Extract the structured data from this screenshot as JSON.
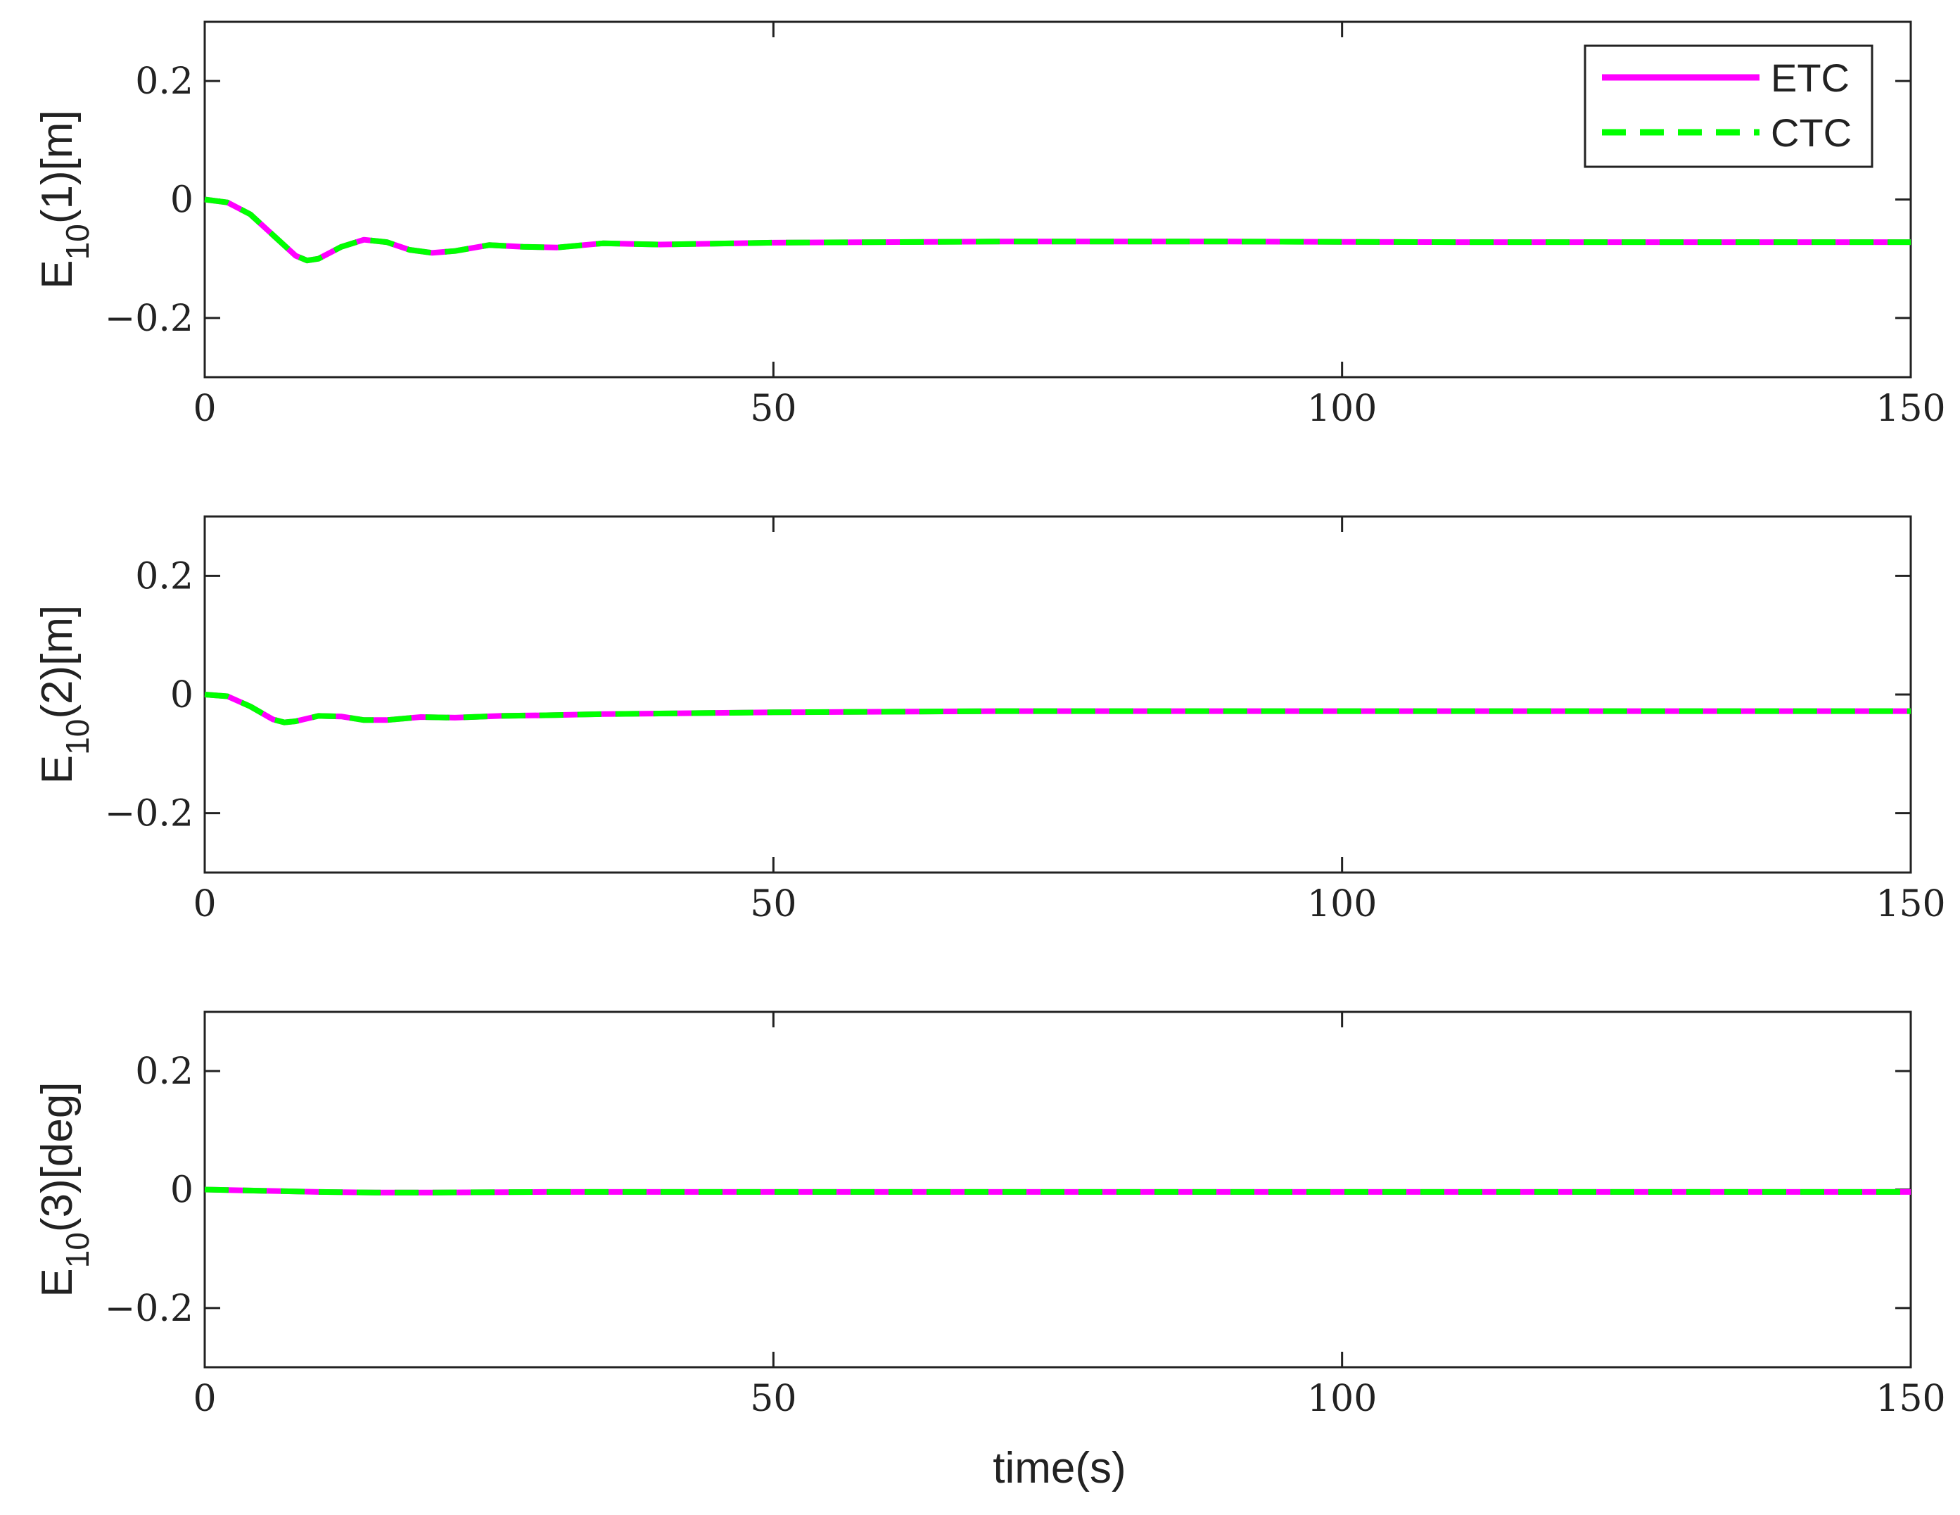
{
  "figure": {
    "xlabel": "time(s)"
  },
  "legend": {
    "placement": "top-right",
    "entries": [
      {
        "label": "ETC",
        "color": "#ff00ff",
        "style": "solid"
      },
      {
        "label": "CTC",
        "color": "#00ff00",
        "style": "dashed"
      }
    ]
  },
  "chart_data": [
    {
      "type": "line",
      "ylabel": {
        "base": "E",
        "sub": "10",
        "rest": "(1)[m]"
      },
      "xlim": [
        0,
        150
      ],
      "ylim": [
        -0.3,
        0.3
      ],
      "xticks": [
        0,
        50,
        100,
        150
      ],
      "yticks": [
        -0.2,
        0,
        0.2
      ],
      "ytick_labels": [
        "−0.2",
        "0",
        "0.2"
      ],
      "xtick_labels": [
        "0",
        "50",
        "100",
        "150"
      ],
      "grid": false,
      "series": [
        {
          "name": "ETC",
          "color": "#ff00ff",
          "style": "solid",
          "x": [
            0,
            2,
            4,
            6,
            8,
            9,
            10,
            12,
            14,
            16,
            18,
            20,
            22,
            25,
            28,
            31,
            35,
            40,
            50,
            70,
            90,
            110,
            130,
            150
          ],
          "y": [
            0,
            -0.005,
            -0.025,
            -0.06,
            -0.095,
            -0.103,
            -0.1,
            -0.08,
            -0.068,
            -0.072,
            -0.085,
            -0.09,
            -0.087,
            -0.077,
            -0.08,
            -0.081,
            -0.074,
            -0.076,
            -0.073,
            -0.071,
            -0.071,
            -0.072,
            -0.072,
            -0.072
          ]
        },
        {
          "name": "CTC",
          "color": "#00ff00",
          "style": "dashed",
          "x": [
            0,
            2,
            4,
            6,
            8,
            9,
            10,
            12,
            14,
            16,
            18,
            20,
            22,
            25,
            28,
            31,
            35,
            40,
            50,
            70,
            90,
            110,
            130,
            150
          ],
          "y": [
            0,
            -0.005,
            -0.025,
            -0.06,
            -0.095,
            -0.103,
            -0.1,
            -0.08,
            -0.068,
            -0.072,
            -0.085,
            -0.09,
            -0.087,
            -0.077,
            -0.08,
            -0.081,
            -0.074,
            -0.076,
            -0.073,
            -0.071,
            -0.071,
            -0.072,
            -0.072,
            -0.072
          ]
        }
      ]
    },
    {
      "type": "line",
      "ylabel": {
        "base": "E",
        "sub": "10",
        "rest": "(2)[m]"
      },
      "xlim": [
        0,
        150
      ],
      "ylim": [
        -0.3,
        0.3
      ],
      "xticks": [
        0,
        50,
        100,
        150
      ],
      "yticks": [
        -0.2,
        0,
        0.2
      ],
      "ytick_labels": [
        "−0.2",
        "0",
        "0.2"
      ],
      "xtick_labels": [
        "0",
        "50",
        "100",
        "150"
      ],
      "grid": false,
      "series": [
        {
          "name": "ETC",
          "color": "#ff00ff",
          "style": "solid",
          "x": [
            0,
            2,
            4,
            6,
            7,
            8,
            10,
            12,
            14,
            16,
            19,
            22,
            26,
            30,
            35,
            40,
            50,
            70,
            90,
            110,
            130,
            150
          ],
          "y": [
            0,
            -0.003,
            -0.02,
            -0.042,
            -0.047,
            -0.045,
            -0.036,
            -0.037,
            -0.043,
            -0.043,
            -0.038,
            -0.039,
            -0.036,
            -0.035,
            -0.033,
            -0.032,
            -0.03,
            -0.028,
            -0.028,
            -0.028,
            -0.028,
            -0.028
          ]
        },
        {
          "name": "CTC",
          "color": "#00ff00",
          "style": "dashed",
          "x": [
            0,
            2,
            4,
            6,
            7,
            8,
            10,
            12,
            14,
            16,
            19,
            22,
            26,
            30,
            35,
            40,
            50,
            70,
            90,
            110,
            130,
            150
          ],
          "y": [
            0,
            -0.003,
            -0.02,
            -0.042,
            -0.047,
            -0.045,
            -0.036,
            -0.037,
            -0.043,
            -0.043,
            -0.038,
            -0.039,
            -0.036,
            -0.035,
            -0.033,
            -0.032,
            -0.03,
            -0.028,
            -0.028,
            -0.028,
            -0.028,
            -0.028
          ]
        }
      ]
    },
    {
      "type": "line",
      "ylabel": {
        "base": "E",
        "sub": "10",
        "rest": "(3)[deg]"
      },
      "xlim": [
        0,
        150
      ],
      "ylim": [
        -0.3,
        0.3
      ],
      "xticks": [
        0,
        50,
        100,
        150
      ],
      "yticks": [
        -0.2,
        0,
        0.2
      ],
      "ytick_labels": [
        "−0.2",
        "0",
        "0.2"
      ],
      "xtick_labels": [
        "0",
        "50",
        "100",
        "150"
      ],
      "grid": false,
      "series": [
        {
          "name": "ETC",
          "color": "#ff00ff",
          "style": "solid",
          "x": [
            0,
            5,
            10,
            15,
            20,
            30,
            50,
            100,
            150
          ],
          "y": [
            0,
            -0.002,
            -0.004,
            -0.005,
            -0.005,
            -0.004,
            -0.004,
            -0.004,
            -0.004
          ]
        },
        {
          "name": "CTC",
          "color": "#00ff00",
          "style": "dashed",
          "x": [
            0,
            5,
            10,
            15,
            20,
            30,
            50,
            100,
            150
          ],
          "y": [
            0,
            -0.002,
            -0.004,
            -0.005,
            -0.005,
            -0.004,
            -0.004,
            -0.004,
            -0.004
          ]
        }
      ]
    }
  ]
}
